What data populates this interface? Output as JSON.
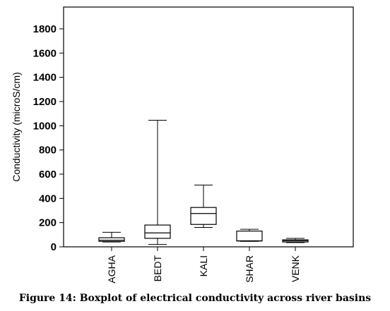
{
  "caption": "Figure 14: Boxplot of electrical conductivity across river basins",
  "chart_data": {
    "type": "boxplot",
    "ylabel": "Conductivity (microS/cm)",
    "ylim": [
      0,
      1980
    ],
    "y_ticks": [
      0,
      200,
      400,
      600,
      800,
      1000,
      1200,
      1400,
      1600,
      1800
    ],
    "categories": [
      "AGHA",
      "BEDT",
      "KALI",
      "SHAR",
      "VENK"
    ],
    "boxes": [
      {
        "category": "AGHA",
        "whisker_low": 40,
        "q1": 45,
        "median": 55,
        "q3": 75,
        "whisker_high": 120
      },
      {
        "category": "BEDT",
        "whisker_low": 20,
        "q1": 70,
        "median": 115,
        "q3": 180,
        "whisker_high": 1045
      },
      {
        "category": "KALI",
        "whisker_low": 160,
        "q1": 185,
        "median": 275,
        "q3": 325,
        "whisker_high": 510
      },
      {
        "category": "SHAR",
        "whisker_low": 45,
        "q1": 48,
        "median": 50,
        "q3": 130,
        "whisker_high": 145
      },
      {
        "category": "VENK",
        "whisker_low": 35,
        "q1": 40,
        "median": 50,
        "q3": 58,
        "whisker_high": 70
      }
    ],
    "grid": false,
    "legend": "none"
  }
}
